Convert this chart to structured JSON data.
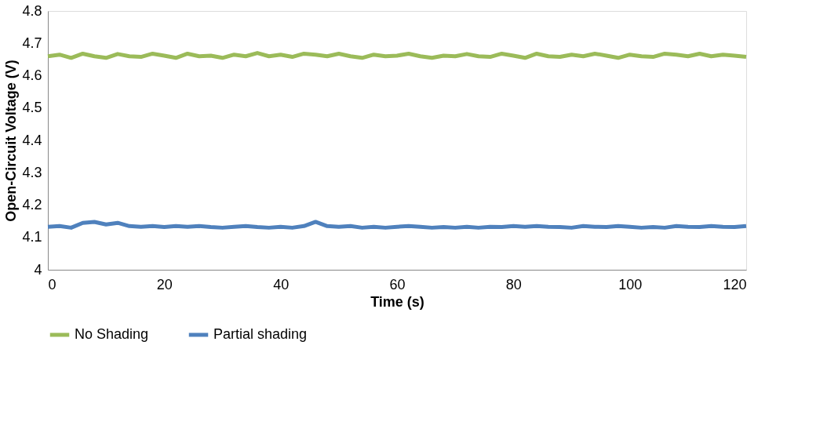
{
  "chart_data": {
    "type": "line",
    "xlabel": "Time (s)",
    "ylabel": "Open-Circuit Voltage (V)",
    "x": [
      0,
      2,
      4,
      6,
      8,
      10,
      12,
      14,
      16,
      18,
      20,
      22,
      24,
      26,
      28,
      30,
      32,
      34,
      36,
      38,
      40,
      42,
      44,
      46,
      48,
      50,
      52,
      54,
      56,
      58,
      60,
      62,
      64,
      66,
      68,
      70,
      72,
      74,
      76,
      78,
      80,
      82,
      84,
      86,
      88,
      90,
      92,
      94,
      96,
      98,
      100,
      102,
      104,
      106,
      108,
      110,
      112,
      114,
      116,
      118,
      120
    ],
    "series": [
      {
        "name": "No Shading",
        "color": "#9bbb59",
        "values": [
          4.66,
          4.665,
          4.655,
          4.668,
          4.66,
          4.655,
          4.667,
          4.66,
          4.658,
          4.668,
          4.662,
          4.655,
          4.668,
          4.66,
          4.662,
          4.655,
          4.665,
          4.66,
          4.67,
          4.66,
          4.665,
          4.658,
          4.668,
          4.665,
          4.66,
          4.668,
          4.66,
          4.655,
          4.665,
          4.66,
          4.662,
          4.668,
          4.66,
          4.655,
          4.662,
          4.66,
          4.667,
          4.66,
          4.658,
          4.668,
          4.662,
          4.655,
          4.668,
          4.66,
          4.658,
          4.665,
          4.66,
          4.668,
          4.662,
          4.655,
          4.665,
          4.66,
          4.658,
          4.668,
          4.665,
          4.66,
          4.668,
          4.66,
          4.665,
          4.662,
          4.658
        ]
      },
      {
        "name": "Partial shading",
        "color": "#4f81bd",
        "values": [
          4.133,
          4.135,
          4.13,
          4.145,
          4.148,
          4.14,
          4.145,
          4.135,
          4.133,
          4.135,
          4.132,
          4.135,
          4.133,
          4.135,
          4.132,
          4.13,
          4.133,
          4.135,
          4.132,
          4.13,
          4.133,
          4.13,
          4.135,
          4.148,
          4.135,
          4.133,
          4.135,
          4.13,
          4.133,
          4.13,
          4.133,
          4.135,
          4.133,
          4.13,
          4.132,
          4.13,
          4.133,
          4.13,
          4.133,
          4.132,
          4.135,
          4.133,
          4.135,
          4.133,
          4.132,
          4.13,
          4.135,
          4.133,
          4.132,
          4.135,
          4.133,
          4.13,
          4.132,
          4.13,
          4.135,
          4.133,
          4.132,
          4.135,
          4.133,
          4.132,
          4.135
        ]
      }
    ],
    "xlim": [
      0,
      120
    ],
    "xticks": [
      0,
      20,
      40,
      60,
      80,
      100,
      120
    ],
    "ylim": [
      4,
      4.8
    ],
    "yticks": [
      4,
      4.1,
      4.2,
      4.3,
      4.4,
      4.5,
      4.6,
      4.7,
      4.8
    ],
    "grid": false,
    "legend": "bottom",
    "marker": "none",
    "line_style": "solid"
  }
}
